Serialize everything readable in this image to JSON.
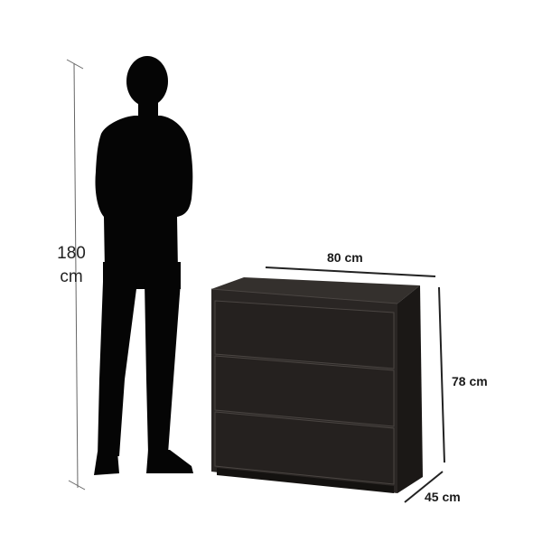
{
  "dimensions": {
    "person_height": {
      "value": "180",
      "unit": "cm"
    },
    "chest_width": "80 cm",
    "chest_height": "78 cm",
    "chest_depth": "45 cm"
  },
  "colors": {
    "silhouette": "#050505",
    "chest_front": "#2a2624",
    "chest_side": "#1b1816",
    "chest_top": "#34302d",
    "dimension_line": "#222222"
  }
}
